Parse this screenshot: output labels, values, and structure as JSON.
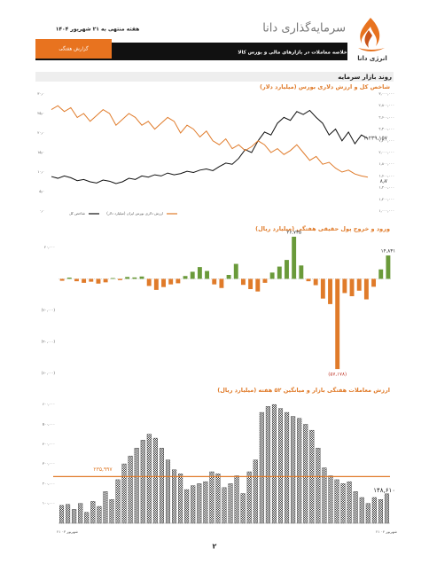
{
  "header": {
    "brand": "سرمایه‌گذاری دانا",
    "date": "هفته منتهی به ۲۱ شهریور ۱۴۰۴",
    "logo_text": "انرژی دانا",
    "banner": "خلاصه معاملات در بازارهای مالی و بورس کالا",
    "tab": "گزارش هفتگی"
  },
  "section": "روند بازار سرمایه",
  "page_number": "۲",
  "chart_data": [
    {
      "type": "line",
      "title": "شاخص کل و ارزش دلاری بورس (میلیارد دلار)",
      "series": [
        {
          "name": "شاخص کل",
          "color": "#111111",
          "axis": "y2",
          "values": [
            1590000,
            1560000,
            1600000,
            1570000,
            1520000,
            1540000,
            1500000,
            1480000,
            1530000,
            1510000,
            1470000,
            1500000,
            1560000,
            1540000,
            1600000,
            1580000,
            1620000,
            1600000,
            1650000,
            1620000,
            1640000,
            1680000,
            1660000,
            1700000,
            1720000,
            1690000,
            1760000,
            1820000,
            1800000,
            1900000,
            2050000,
            2000000,
            2200000,
            2350000,
            2300000,
            2500000,
            2600000,
            2550000,
            2700000,
            2650000,
            2720000,
            2600000,
            2500000,
            2300000,
            2400000,
            2200000,
            2350000,
            2150000,
            2300000,
            2239157
          ],
          "value_labels": [
            null,
            null,
            null,
            null,
            null,
            null,
            null,
            null,
            null,
            null,
            null,
            null,
            null,
            null,
            null,
            null,
            null,
            null,
            null,
            null,
            null,
            null,
            null,
            null,
            null,
            null,
            null,
            null,
            null,
            null,
            null,
            null,
            null,
            null,
            null,
            null,
            null,
            null,
            null,
            null,
            null,
            null,
            null,
            null,
            null,
            null,
            null,
            null,
            null,
            "۲,۲۳۹,۱۵۷"
          ]
        },
        {
          "name": "ارزش دلاری بورس ایران (میلیارد دلار)",
          "color": "#e07b2a",
          "values": [
            26,
            27,
            25.5,
            26.5,
            24,
            25,
            23,
            24.5,
            26,
            25,
            22,
            23.5,
            25,
            24,
            22,
            23,
            21,
            22.5,
            24,
            23,
            20,
            22,
            21,
            19,
            20.5,
            18,
            17,
            18.5,
            16,
            17,
            15.5,
            16.5,
            18,
            17,
            15,
            16,
            14.5,
            15.5,
            17,
            15,
            13,
            14,
            12,
            12.5,
            11,
            10,
            10.5,
            9.5,
            9,
            8.7
          ],
          "value_labels": [
            null,
            null,
            null,
            null,
            null,
            null,
            null,
            null,
            null,
            null,
            null,
            null,
            null,
            null,
            null,
            null,
            null,
            null,
            null,
            null,
            null,
            null,
            null,
            null,
            null,
            null,
            null,
            null,
            null,
            null,
            null,
            null,
            null,
            null,
            null,
            null,
            null,
            null,
            null,
            null,
            null,
            null,
            null,
            null,
            null,
            null,
            null,
            null,
            null,
            "۸٫۷"
          ]
        }
      ],
      "ylim": [
        0,
        30
      ],
      "yticks": [
        {
          "value": 0,
          "label": "۰٫۰"
        },
        {
          "value": 5,
          "label": "۵٫۰"
        },
        {
          "value": 10,
          "label": "۱۰٫۰"
        },
        {
          "value": 15,
          "label": "۱۵٫۰"
        },
        {
          "value": 20,
          "label": "۲۰٫۰"
        },
        {
          "value": 25,
          "label": "۲۵٫۰"
        },
        {
          "value": 30,
          "label": "۳۰٫۰"
        }
      ],
      "y2lim": [
        1000000,
        3000000
      ],
      "y2ticks": [
        {
          "value": 1000000,
          "label": "۱,۰۰۰,۰۰۰"
        },
        {
          "value": 1200000,
          "label": "۱,۲۰۰,۰۰۰"
        },
        {
          "value": 1400000,
          "label": "۱,۴۰۰,۰۰۰"
        },
        {
          "value": 1600000,
          "label": "۱,۶۰۰,۰۰۰"
        },
        {
          "value": 1800000,
          "label": "۱,۸۰۰,۰۰۰"
        },
        {
          "value": 2000000,
          "label": "۲,۰۰۰,۰۰۰"
        },
        {
          "value": 2200000,
          "label": "۲,۲۰۰,۰۰۰"
        },
        {
          "value": 2400000,
          "label": "۲,۴۰۰,۰۰۰"
        },
        {
          "value": 2600000,
          "label": "۲,۶۰۰,۰۰۰"
        },
        {
          "value": 2800000,
          "label": "۲,۸۰۰,۰۰۰"
        },
        {
          "value": 3000000,
          "label": "۳,۰۰۰,۰۰۰"
        }
      ]
    },
    {
      "type": "bar",
      "title": "ورود و خروج پول حقیقی هفتگی (میلیارد ریال)",
      "positive_color": "#6a9a3a",
      "negative_color": "#e07b2a",
      "values": [
        -1200,
        800,
        -1500,
        -2500,
        -1800,
        -3000,
        -2200,
        500,
        -800,
        1200,
        900,
        1500,
        -4500,
        -7000,
        -5200,
        -3500,
        -2800,
        1800,
        4500,
        7500,
        5000,
        -3500,
        -5800,
        2500,
        9500,
        -3800,
        -6500,
        -8000,
        -2500,
        4000,
        7800,
        12000,
        26735,
        8500,
        -1500,
        -4000,
        -12500,
        -16000,
        -57178,
        -9000,
        -11000,
        -7500,
        -13000,
        -5000,
        6000,
        14831
      ],
      "value_labels": [
        null,
        null,
        null,
        null,
        null,
        null,
        null,
        null,
        null,
        null,
        null,
        null,
        null,
        null,
        null,
        null,
        null,
        null,
        null,
        null,
        null,
        null,
        null,
        null,
        null,
        null,
        null,
        null,
        null,
        null,
        null,
        null,
        "۲۶,۷۳۵",
        null,
        null,
        null,
        null,
        null,
        "(۵۷,۱۷۸)",
        null,
        null,
        null,
        null,
        null,
        null,
        "۱۴,۸۳۱"
      ],
      "ylim": [
        -65000,
        25000
      ],
      "yticks": [
        {
          "value": 20000,
          "label": "۲۰,۰۰۰"
        },
        {
          "value": -20000,
          "label": "(۲۰,۰۰۰)"
        },
        {
          "value": -40000,
          "label": "(۴۰,۰۰۰)"
        },
        {
          "value": -60000,
          "label": "(۶۰,۰۰۰)"
        }
      ]
    },
    {
      "type": "hatched_bar",
      "title": "ارزش معاملات هفتگی بازار و میانگین ۵۲ هفته (میلیارد ریال)",
      "color": "#333333",
      "average_color": "#e07b2a",
      "values": [
        90000,
        95000,
        70000,
        100000,
        55000,
        110000,
        85000,
        160000,
        120000,
        220000,
        300000,
        340000,
        380000,
        420000,
        450000,
        430000,
        380000,
        320000,
        270000,
        250000,
        170000,
        190000,
        200000,
        210000,
        260000,
        250000,
        180000,
        200000,
        240000,
        150000,
        260000,
        320000,
        560000,
        590000,
        600000,
        580000,
        560000,
        540000,
        530000,
        500000,
        470000,
        380000,
        280000,
        240000,
        220000,
        200000,
        210000,
        160000,
        130000,
        100000,
        130000,
        120000,
        148610
      ],
      "value_labels": [
        null,
        null,
        null,
        null,
        null,
        null,
        null,
        null,
        null,
        null,
        null,
        null,
        null,
        null,
        null,
        null,
        null,
        null,
        null,
        null,
        null,
        null,
        null,
        null,
        null,
        null,
        null,
        null,
        null,
        null,
        null,
        null,
        null,
        null,
        null,
        null,
        null,
        null,
        null,
        null,
        null,
        null,
        null,
        null,
        null,
        null,
        null,
        null,
        null,
        null,
        null,
        null,
        "۱۴۸,۶۱۰"
      ],
      "average": 235997,
      "average_label": "۲۳۵,۹۹۷",
      "xlabels": [
        "۲۱ شهریور ۰۳",
        "۲۱ شهریور ۰۴"
      ],
      "ylim": [
        0,
        650000
      ],
      "yticks": [
        {
          "value": 100000,
          "label": "۱۰۰,۰۰۰"
        },
        {
          "value": 200000,
          "label": "۲۰۰,۰۰۰"
        },
        {
          "value": 300000,
          "label": "۳۰۰,۰۰۰"
        },
        {
          "value": 400000,
          "label": "۴۰۰,۰۰۰"
        },
        {
          "value": 500000,
          "label": "۵۰۰,۰۰۰"
        },
        {
          "value": 600000,
          "label": "۶۰۰,۰۰۰"
        }
      ]
    }
  ]
}
